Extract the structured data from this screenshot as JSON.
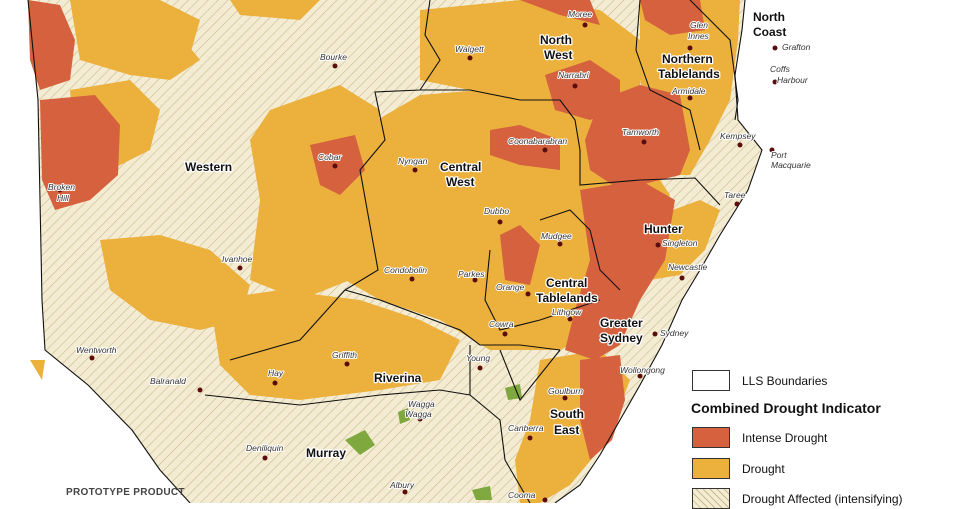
{
  "legend": {
    "boundary_label": "LLS Boundaries",
    "title": "Combined Drought Indicator",
    "items": [
      {
        "label": "Intense Drought",
        "color": "#d5613f"
      },
      {
        "label": "Drought",
        "color": "#ecb13c"
      },
      {
        "label": "Drought Affected (intensifying)",
        "color": "#f4ecd2"
      }
    ]
  },
  "footer": {
    "text": "PROTOTYPE PRODUCT"
  },
  "colors": {
    "intense": "#d5613f",
    "drought": "#ecb13c",
    "affected": "#f4ecd2",
    "recovering": "#7fa83f",
    "sea": "#ffffff"
  },
  "regions": {
    "western": "Western",
    "north_west_1": "North",
    "north_west_2": "West",
    "central_west_1": "Central",
    "central_west_2": "West",
    "northern_tablelands_1": "Northern",
    "northern_tablelands_2": "Tablelands",
    "north_coast_1": "North",
    "north_coast_2": "Coast",
    "hunter": "Hunter",
    "central_tablelands_1": "Central",
    "central_tablelands_2": "Tablelands",
    "greater_sydney_1": "Greater",
    "greater_sydney_2": "Sydney",
    "riverina": "Riverina",
    "murray": "Murray",
    "south_east_1": "South",
    "south_east_2": "East"
  },
  "towns": {
    "moree": "Moree",
    "glen_innes_1": "Glen",
    "glen_innes_2": "Innes",
    "grafton": "Grafton",
    "walgett": "Walgett",
    "bourke": "Bourke",
    "narrabri": "Narrabri",
    "coffs_1": "Coffs",
    "coffs_2": "Harbour",
    "armidale": "Armidale",
    "kempsey": "Kempsey",
    "port_1": "Port",
    "port_2": "Macquarie",
    "tamworth": "Tamworth",
    "coonabarabran": "Coonabarabran",
    "nyngan": "Nyngan",
    "cobar": "Cobar",
    "broken_1": "Broken",
    "broken_2": "Hill",
    "taree": "Taree",
    "dubbo": "Dubbo",
    "singleton": "Singleton",
    "mudgee": "Mudgee",
    "ivanhoe": "Ivanhoe",
    "newcastle": "Newcastle",
    "condobolin": "Condobolin",
    "parkes": "Parkes",
    "orange": "Orange",
    "lithgow": "Lithgow",
    "cowra": "Cowra",
    "sydney": "Sydney",
    "wentworth": "Wentworth",
    "griffith": "Griffith",
    "young": "Young",
    "balranald": "Balranald",
    "hay": "Hay",
    "wollongong": "Wollongong",
    "goulburn": "Goulburn",
    "wagga_1": "Wagga",
    "wagga_2": "Wagga",
    "canberra": "Canberra",
    "deniliquin": "Deniliquin",
    "albury": "Albury",
    "cooma": "Cooma"
  }
}
